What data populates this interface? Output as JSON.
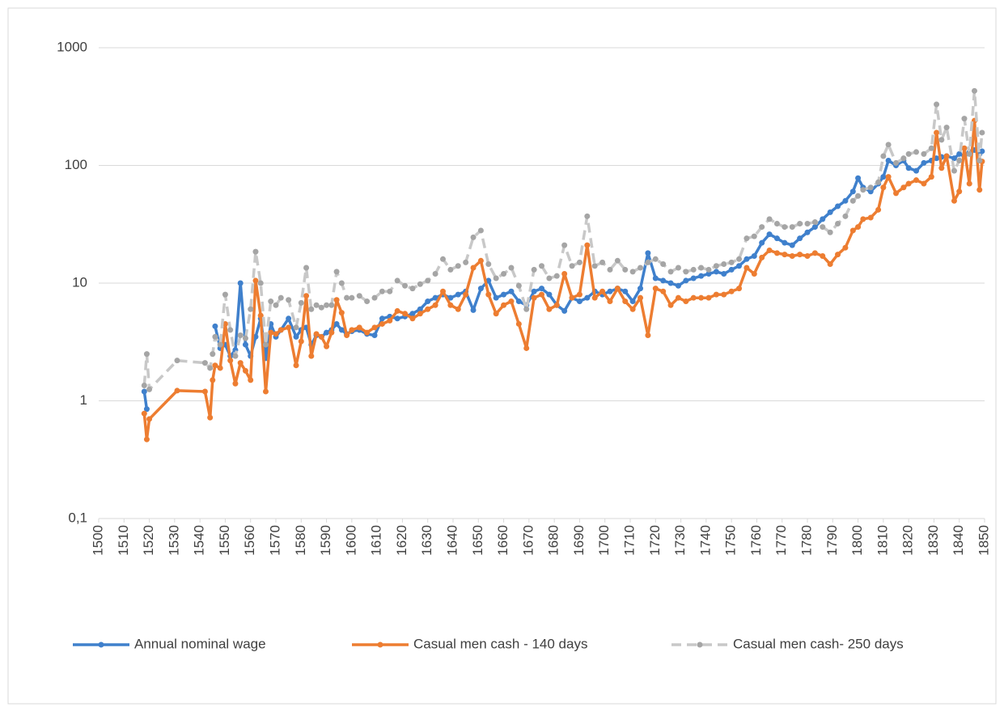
{
  "chart_data": {
    "type": "line",
    "log_scale": true,
    "grid": true,
    "legend": "bottom",
    "x": [
      1518,
      1519,
      1520,
      1531,
      1542,
      1544,
      1545,
      1546,
      1548,
      1550,
      1552,
      1554,
      1556,
      1558,
      1560,
      1562,
      1564,
      1566,
      1568,
      1570,
      1572,
      1575,
      1578,
      1580,
      1582,
      1584,
      1586,
      1588,
      1590,
      1592,
      1594,
      1596,
      1598,
      1600,
      1603,
      1606,
      1609,
      1612,
      1615,
      1618,
      1621,
      1624,
      1627,
      1630,
      1633,
      1636,
      1639,
      1642,
      1645,
      1648,
      1651,
      1654,
      1657,
      1660,
      1663,
      1666,
      1669,
      1672,
      1675,
      1678,
      1681,
      1684,
      1687,
      1690,
      1693,
      1696,
      1699,
      1702,
      1705,
      1708,
      1711,
      1714,
      1717,
      1720,
      1723,
      1726,
      1729,
      1732,
      1735,
      1738,
      1741,
      1744,
      1747,
      1750,
      1753,
      1756,
      1759,
      1762,
      1765,
      1768,
      1771,
      1774,
      1777,
      1780,
      1783,
      1786,
      1789,
      1792,
      1795,
      1798,
      1800,
      1802,
      1805,
      1808,
      1810,
      1812,
      1815,
      1818,
      1820,
      1823,
      1826,
      1829,
      1831,
      1833,
      1835,
      1838,
      1840,
      1842,
      1844,
      1846,
      1848,
      1849
    ],
    "series": [
      {
        "name": "Annual nominal wage",
        "color": "#3f80cc",
        "dashed": false,
        "values": [
          1.2,
          0.85,
          null,
          null,
          null,
          null,
          null,
          4.3,
          2.8,
          3.0,
          2.4,
          2.7,
          10.0,
          3.0,
          2.4,
          3.5,
          5.0,
          2.3,
          4.5,
          3.5,
          4.0,
          5.0,
          3.5,
          4.0,
          4.2,
          3.0,
          3.6,
          3.5,
          3.8,
          4.0,
          4.5,
          4.0,
          3.7,
          3.9,
          4.0,
          3.7,
          3.6,
          5.0,
          5.2,
          5.0,
          5.2,
          5.5,
          6.0,
          7.0,
          7.5,
          8.0,
          7.5,
          8.0,
          8.5,
          5.9,
          9.0,
          10.5,
          7.5,
          8.0,
          8.5,
          7.0,
          6.5,
          8.5,
          9.0,
          8.0,
          6.5,
          5.8,
          7.5,
          7.0,
          7.5,
          8.5,
          8.0,
          8.5,
          9.0,
          8.5,
          7.0,
          9.0,
          18.0,
          11.0,
          10.5,
          10.0,
          9.5,
          10.5,
          11.0,
          11.5,
          12.0,
          12.5,
          12.0,
          13.0,
          14.0,
          16.0,
          17.0,
          22.0,
          26.0,
          24.0,
          22.0,
          21.0,
          24.0,
          27.0,
          30.0,
          35.0,
          40.0,
          45.0,
          50.0,
          60.0,
          78.0,
          65.0,
          60.0,
          70.0,
          80.0,
          110.0,
          100.0,
          110.0,
          95.0,
          90.0,
          105.0,
          110.0,
          115.0,
          118.0,
          120.0,
          115.0,
          125.0,
          120.0,
          130.0,
          135.0,
          125.0,
          132.0
        ]
      },
      {
        "name": "Casual men cash - 140 days",
        "color": "#ed7d31",
        "dashed": false,
        "values": [
          0.78,
          0.47,
          0.7,
          1.22,
          1.2,
          0.72,
          1.5,
          2.0,
          1.9,
          4.5,
          2.2,
          1.4,
          2.1,
          1.8,
          1.5,
          10.5,
          5.3,
          1.2,
          3.8,
          3.7,
          4.0,
          4.2,
          2.0,
          3.2,
          7.8,
          2.4,
          3.7,
          3.5,
          2.9,
          3.8,
          7.2,
          5.6,
          3.6,
          4.0,
          4.2,
          3.8,
          4.2,
          4.5,
          4.8,
          5.8,
          5.5,
          5.0,
          5.5,
          6.0,
          6.5,
          8.5,
          6.5,
          6.0,
          8.0,
          13.5,
          15.5,
          8.0,
          5.5,
          6.5,
          7.0,
          4.5,
          2.8,
          7.5,
          8.0,
          6.0,
          6.5,
          12.0,
          7.5,
          8.0,
          21.0,
          7.5,
          8.5,
          7.0,
          9.0,
          7.0,
          6.0,
          7.5,
          3.6,
          9.0,
          8.5,
          6.5,
          7.5,
          7.0,
          7.5,
          7.5,
          7.5,
          8.0,
          8.0,
          8.5,
          9.0,
          13.5,
          12.0,
          16.5,
          19.0,
          18.0,
          17.5,
          17.0,
          17.5,
          17.0,
          18.0,
          17.0,
          14.5,
          17.5,
          20.0,
          28.0,
          30.0,
          35.0,
          36.0,
          42.0,
          65.0,
          80.0,
          58.0,
          65.0,
          70.0,
          75.0,
          70.0,
          80.0,
          190.0,
          95.0,
          120.0,
          50.0,
          60.0,
          140.0,
          70.0,
          240.0,
          62.0,
          108.0
        ]
      },
      {
        "name": "Casual men cash- 250 days",
        "color": "#c8c8c8",
        "marker_color": "#a5a5a5",
        "dashed": true,
        "values": [
          1.35,
          2.5,
          1.25,
          2.2,
          2.1,
          1.9,
          2.5,
          3.5,
          3.0,
          8.0,
          4.0,
          2.4,
          3.6,
          3.4,
          6.0,
          18.5,
          10.0,
          3.0,
          7.0,
          6.5,
          7.5,
          7.2,
          4.2,
          6.8,
          13.5,
          6.0,
          6.5,
          6.2,
          6.5,
          6.5,
          12.5,
          10.0,
          7.5,
          7.5,
          7.8,
          7.0,
          7.5,
          8.5,
          8.5,
          10.5,
          9.5,
          9.0,
          9.8,
          10.5,
          12.0,
          16.0,
          13.0,
          14.0,
          15.0,
          24.5,
          28.0,
          14.5,
          11.0,
          12.0,
          13.5,
          9.5,
          6.0,
          13.0,
          14.0,
          11.0,
          11.5,
          21.0,
          14.0,
          15.0,
          37.0,
          14.0,
          15.0,
          13.0,
          15.5,
          13.0,
          12.5,
          13.5,
          15.0,
          16.0,
          14.5,
          12.5,
          13.5,
          12.5,
          13.0,
          13.5,
          13.0,
          14.0,
          14.5,
          15.0,
          16.0,
          24.0,
          25.0,
          30.0,
          35.0,
          32.0,
          30.0,
          30.0,
          32.0,
          32.0,
          33.0,
          30.0,
          27.0,
          32.0,
          37.0,
          50.0,
          55.0,
          62.0,
          65.0,
          72.0,
          120.0,
          150.0,
          105.0,
          115.0,
          125.0,
          130.0,
          125.0,
          140.0,
          330.0,
          165.0,
          210.0,
          90.0,
          110.0,
          250.0,
          125.0,
          430.0,
          110.0,
          190.0
        ]
      }
    ],
    "xlim": [
      1500,
      1850
    ],
    "xticks": [
      1500,
      1510,
      1520,
      1530,
      1540,
      1550,
      1560,
      1570,
      1580,
      1590,
      1600,
      1610,
      1620,
      1630,
      1640,
      1650,
      1660,
      1670,
      1680,
      1690,
      1700,
      1710,
      1720,
      1730,
      1740,
      1750,
      1760,
      1770,
      1780,
      1790,
      1800,
      1810,
      1820,
      1830,
      1840,
      1850
    ],
    "ylim": [
      0.1,
      1000
    ],
    "yticks": [
      {
        "value": 0.1,
        "label": "0,1"
      },
      1,
      10,
      100,
      1000
    ]
  }
}
